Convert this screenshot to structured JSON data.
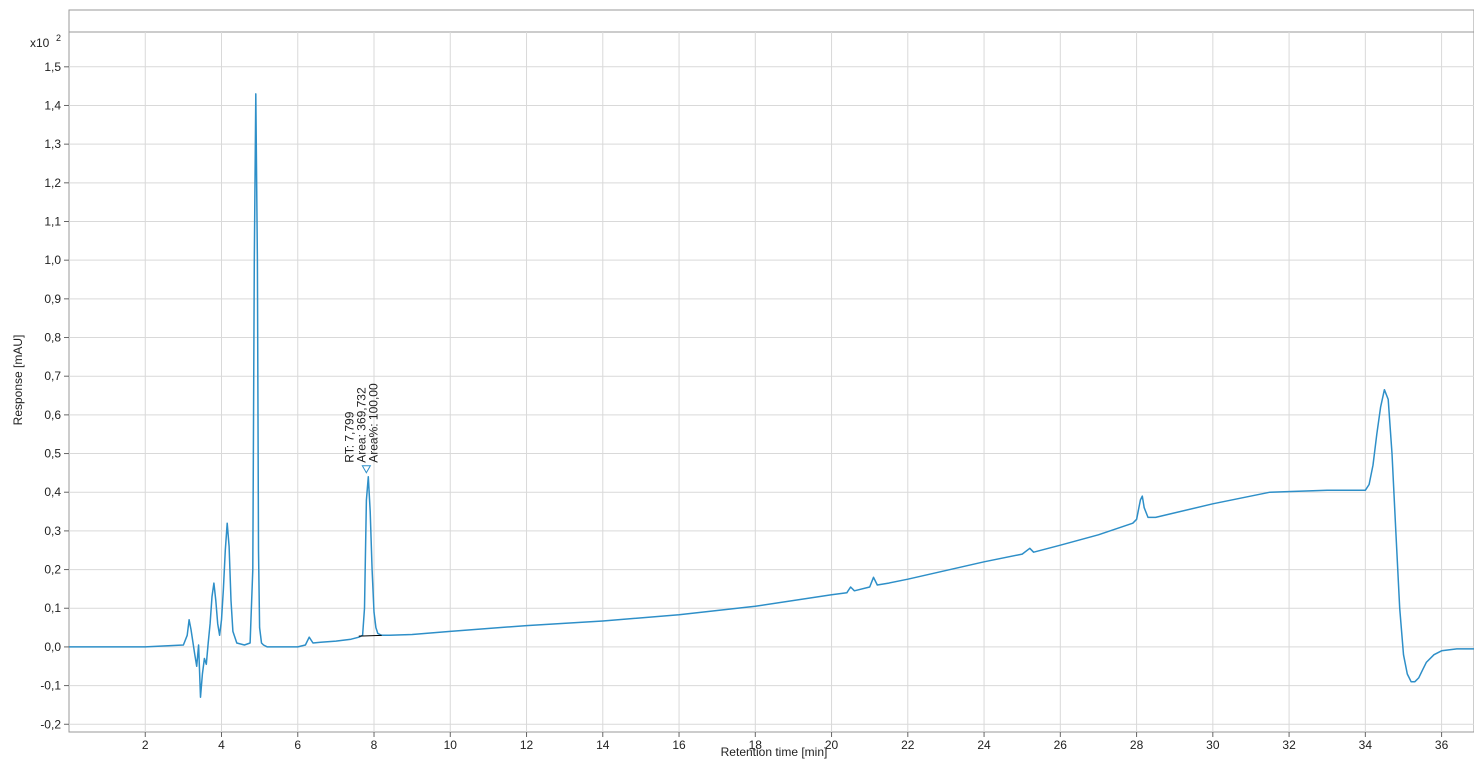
{
  "chart_data": {
    "type": "line",
    "title": "",
    "multiplier_label": "x10",
    "multiplier_exponent": "2",
    "xlabel": "Retention time [min]",
    "ylabel": "Response [mAU]",
    "xlim": [
      0,
      36.85
    ],
    "ylim": [
      -0.22,
      1.59
    ],
    "grid": true,
    "legend": "none",
    "x_ticks": [
      2,
      4,
      6,
      8,
      10,
      12,
      14,
      16,
      18,
      20,
      22,
      24,
      26,
      28,
      30,
      32,
      34,
      36
    ],
    "x_tick_labels": [
      "2",
      "4",
      "6",
      "8",
      "10",
      "12",
      "14",
      "16",
      "18",
      "20",
      "22",
      "24",
      "26",
      "28",
      "30",
      "32",
      "34",
      "36"
    ],
    "y_ticks": [
      -0.2,
      -0.1,
      0.0,
      0.1,
      0.2,
      0.3,
      0.4,
      0.5,
      0.6,
      0.7,
      0.8,
      0.9,
      1.0,
      1.1,
      1.2,
      1.3,
      1.4,
      1.5
    ],
    "y_tick_labels": [
      "-0,2",
      "-0,1",
      "0,0",
      "0,1",
      "0,2",
      "0,3",
      "0,4",
      "0,5",
      "0,6",
      "0,7",
      "0,8",
      "0,9",
      "1,0",
      "1,1",
      "1,2",
      "1,3",
      "1,4",
      "1,5"
    ],
    "series": [
      {
        "color": "#2e8fc8",
        "x": [
          0.0,
          2.0,
          3.0,
          3.1,
          3.15,
          3.2,
          3.3,
          3.35,
          3.4,
          3.45,
          3.5,
          3.55,
          3.6,
          3.65,
          3.7,
          3.75,
          3.8,
          3.85,
          3.9,
          3.95,
          4.0,
          4.05,
          4.1,
          4.15,
          4.2,
          4.25,
          4.3,
          4.4,
          4.6,
          4.75,
          4.82,
          4.86,
          4.9,
          4.94,
          4.97,
          5.0,
          5.05,
          5.1,
          5.2,
          5.5,
          6.0,
          6.2,
          6.3,
          6.4,
          6.6,
          7.0,
          7.4,
          7.6,
          7.7,
          7.75,
          7.8,
          7.85,
          7.9,
          7.95,
          8.0,
          8.05,
          8.1,
          8.2,
          8.4,
          9.0,
          10.0,
          12.0,
          14.0,
          16.0,
          18.0,
          20.0,
          20.4,
          20.5,
          20.6,
          21.0,
          21.1,
          21.2,
          21.5,
          22.0,
          24.0,
          25.0,
          25.2,
          25.3,
          26.0,
          27.0,
          27.9,
          28.0,
          28.1,
          28.15,
          28.2,
          28.3,
          28.5,
          30.0,
          31.5,
          33.0,
          34.0,
          34.1,
          34.2,
          34.3,
          34.4,
          34.5,
          34.6,
          34.7,
          34.8,
          34.9,
          35.0,
          35.1,
          35.2,
          35.3,
          35.4,
          35.5,
          35.6,
          35.8,
          36.0,
          36.4,
          36.85
        ],
        "y": [
          0.0,
          0.0,
          0.005,
          0.03,
          0.07,
          0.045,
          -0.02,
          -0.05,
          0.005,
          -0.13,
          -0.07,
          -0.03,
          -0.045,
          0.01,
          0.06,
          0.13,
          0.165,
          0.12,
          0.06,
          0.03,
          0.07,
          0.15,
          0.25,
          0.32,
          0.26,
          0.12,
          0.04,
          0.01,
          0.005,
          0.01,
          0.2,
          1.0,
          1.43,
          1.0,
          0.25,
          0.05,
          0.01,
          0.005,
          0.0,
          0.0,
          0.0,
          0.005,
          0.025,
          0.01,
          0.012,
          0.015,
          0.02,
          0.025,
          0.03,
          0.1,
          0.38,
          0.44,
          0.35,
          0.2,
          0.09,
          0.05,
          0.035,
          0.03,
          0.03,
          0.032,
          0.04,
          0.055,
          0.067,
          0.083,
          0.105,
          0.135,
          0.14,
          0.155,
          0.145,
          0.155,
          0.18,
          0.16,
          0.165,
          0.175,
          0.22,
          0.24,
          0.255,
          0.245,
          0.263,
          0.29,
          0.32,
          0.33,
          0.38,
          0.39,
          0.36,
          0.335,
          0.335,
          0.37,
          0.4,
          0.405,
          0.405,
          0.42,
          0.47,
          0.55,
          0.62,
          0.665,
          0.64,
          0.5,
          0.3,
          0.1,
          -0.02,
          -0.07,
          -0.09,
          -0.09,
          -0.08,
          -0.06,
          -0.04,
          -0.02,
          -0.01,
          -0.005,
          -0.005
        ]
      }
    ],
    "baseline_segment": {
      "x": [
        7.6,
        8.2
      ],
      "y": [
        0.028,
        0.03
      ]
    },
    "peak_annotation": {
      "x": 7.799,
      "y": 0.44,
      "lines": [
        "RT: 7,799",
        "Area: 369,732",
        "Area%: 100,00"
      ]
    }
  }
}
